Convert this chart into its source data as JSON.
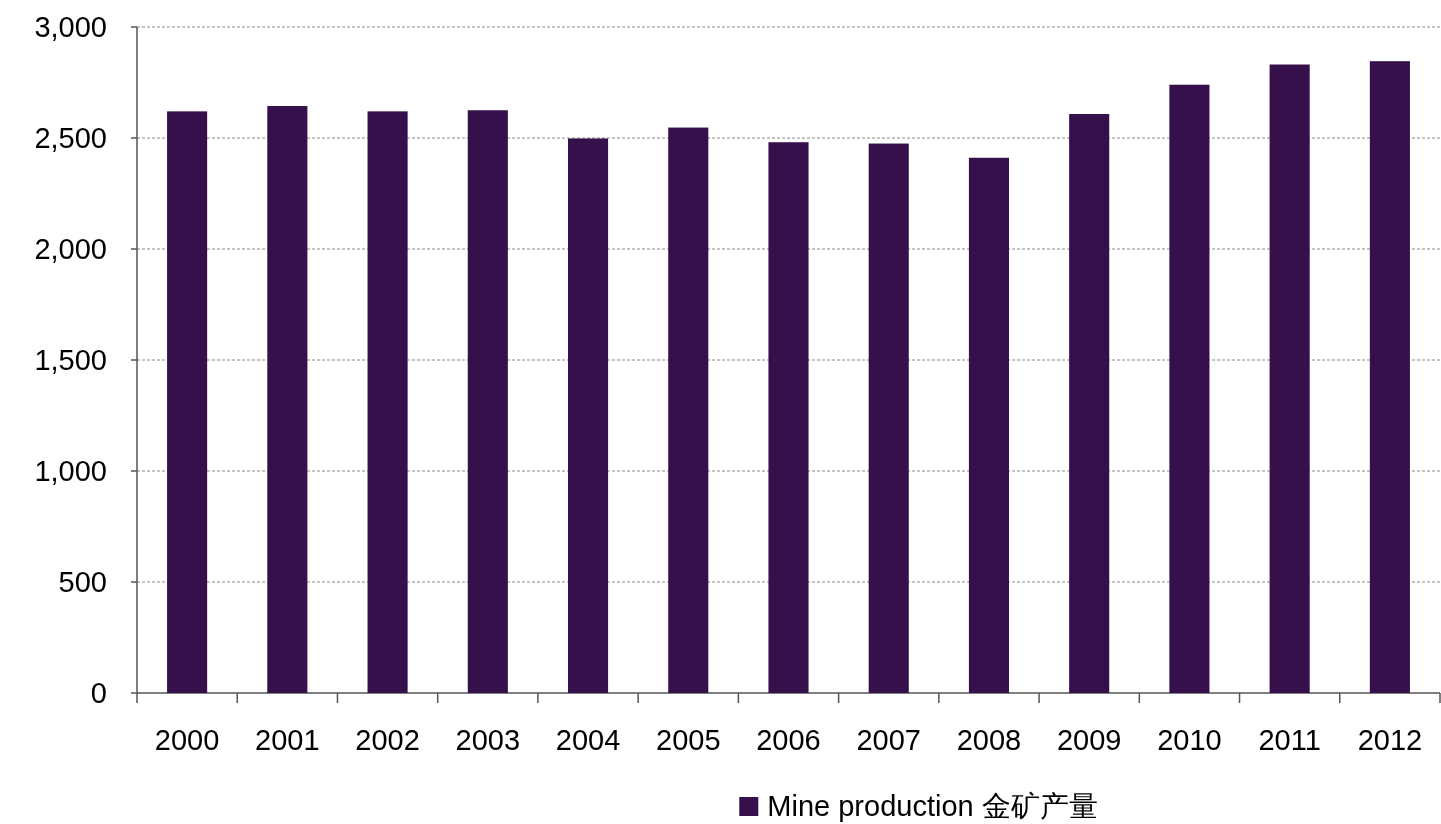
{
  "chart_data": {
    "type": "bar",
    "categories": [
      "2000",
      "2001",
      "2002",
      "2003",
      "2004",
      "2005",
      "2006",
      "2007",
      "2008",
      "2009",
      "2010",
      "2011",
      "2012"
    ],
    "series": [
      {
        "name": "Mine production 金矿产量",
        "color": "#35104b",
        "values": [
          2620,
          2644,
          2620,
          2625,
          2498,
          2547,
          2481,
          2475,
          2411,
          2608,
          2740,
          2831,
          2846
        ]
      }
    ],
    "ylim": [
      0,
      3000
    ],
    "yticks": [
      0,
      500,
      {
        "value": 1000,
        "label": "1,000"
      },
      {
        "value": 1500,
        "label": "1,500"
      },
      {
        "value": 2000,
        "label": "2,000"
      },
      {
        "value": 2500,
        "label": "2,500"
      },
      {
        "value": 3000,
        "label": "3,000"
      }
    ],
    "grid": "y",
    "legend": "bottom"
  }
}
